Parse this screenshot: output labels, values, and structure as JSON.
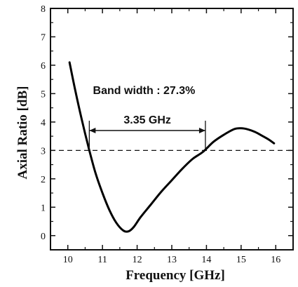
{
  "chart_data": {
    "type": "line",
    "title": "",
    "xlabel": "Frequency [GHz]",
    "ylabel": "Axial Ratio [dB]",
    "xlim": [
      9.5,
      16.5
    ],
    "ylim": [
      -0.5,
      8
    ],
    "xticks": [
      10,
      11,
      12,
      13,
      14,
      15,
      16
    ],
    "yticks": [
      0,
      1,
      2,
      3,
      4,
      5,
      6,
      7,
      8
    ],
    "grid": false,
    "series": [
      {
        "x": [
          10.05,
          10.2,
          10.4,
          10.6,
          10.8,
          11.0,
          11.2,
          11.4,
          11.6,
          11.75,
          11.9,
          12.1,
          12.4,
          12.7,
          13.0,
          13.3,
          13.6,
          13.9,
          14.2,
          14.5,
          14.8,
          15.0,
          15.2,
          15.4,
          15.6,
          15.8,
          15.95
        ],
        "y": [
          6.1,
          5.2,
          4.1,
          3.1,
          2.2,
          1.5,
          0.9,
          0.45,
          0.18,
          0.15,
          0.3,
          0.65,
          1.1,
          1.55,
          1.95,
          2.35,
          2.7,
          2.95,
          3.3,
          3.55,
          3.75,
          3.78,
          3.74,
          3.65,
          3.52,
          3.38,
          3.25
        ]
      }
    ],
    "reference_line": {
      "y": 3,
      "style": "dashed"
    },
    "annotations": {
      "bandwidth_text": "Band width : 27.3%",
      "span_text": "3.35 GHz",
      "span_from": 10.62,
      "span_to": 13.97
    }
  }
}
